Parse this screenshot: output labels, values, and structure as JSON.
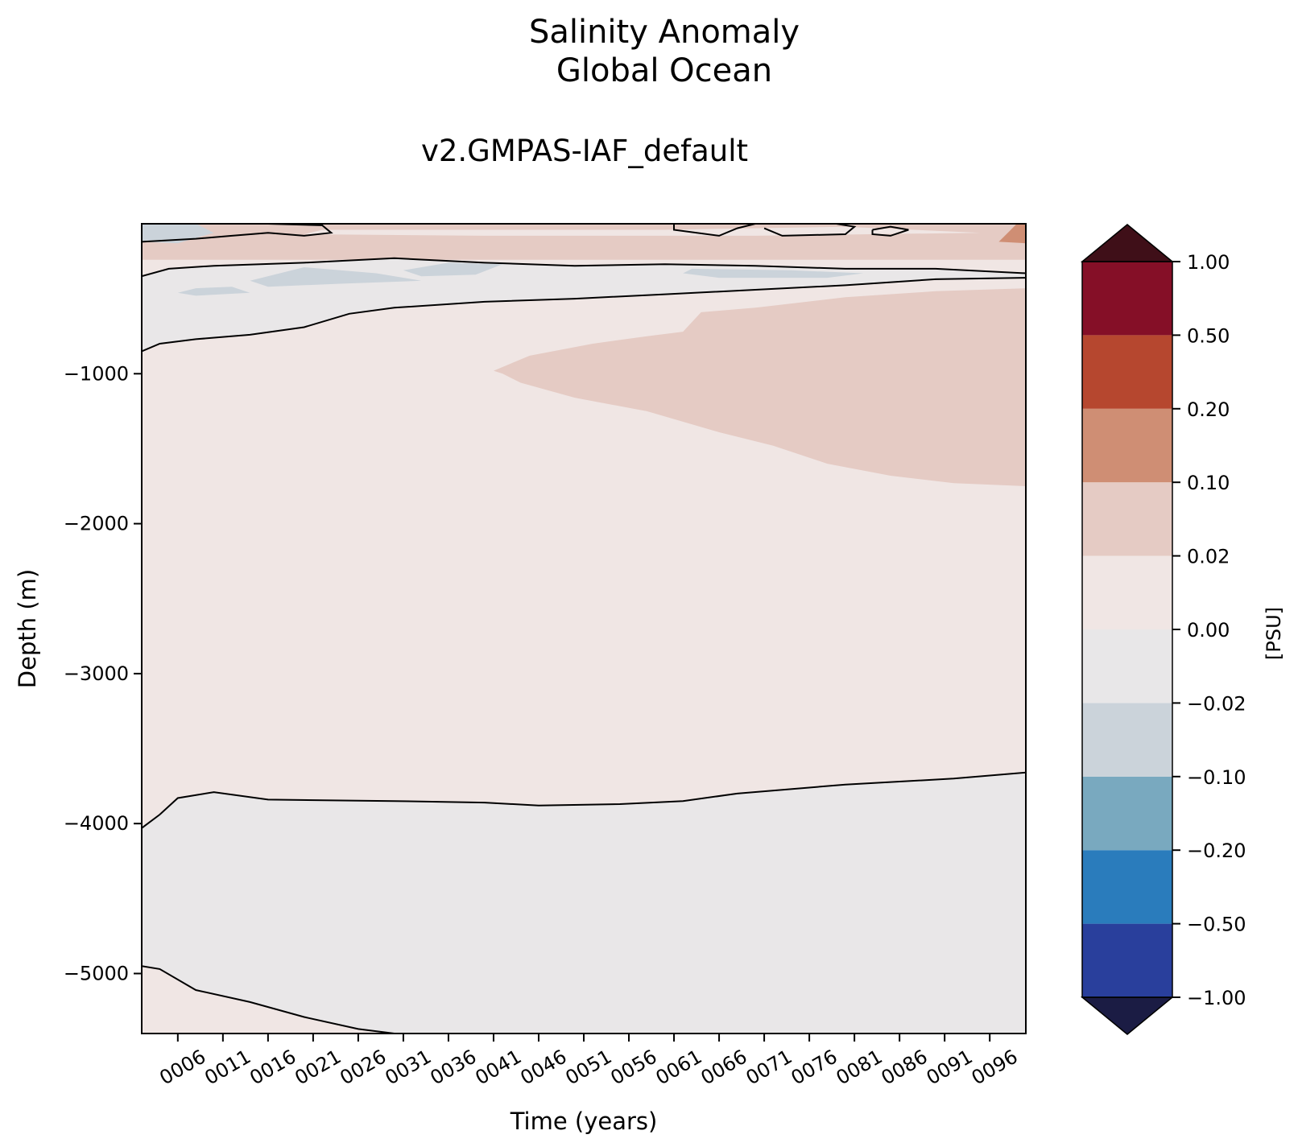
{
  "chart_data": {
    "type": "heatmap",
    "title": "Salinity Anomaly",
    "title_line2": "Global Ocean",
    "subtitle": "v2.GMPAS-IAF_default",
    "xlabel": "Time (years)",
    "ylabel": "Depth (m)",
    "colorbar_label": "[PSU]",
    "xlim": [
      2,
      100
    ],
    "ylim": [
      -5400,
      0
    ],
    "x_ticks": [
      {
        "value": 6,
        "label": "0006"
      },
      {
        "value": 11,
        "label": "0011"
      },
      {
        "value": 16,
        "label": "0016"
      },
      {
        "value": 21,
        "label": "0021"
      },
      {
        "value": 26,
        "label": "0026"
      },
      {
        "value": 31,
        "label": "0031"
      },
      {
        "value": 36,
        "label": "0036"
      },
      {
        "value": 41,
        "label": "0041"
      },
      {
        "value": 46,
        "label": "0046"
      },
      {
        "value": 51,
        "label": "0051"
      },
      {
        "value": 56,
        "label": "0056"
      },
      {
        "value": 61,
        "label": "0061"
      },
      {
        "value": 66,
        "label": "0066"
      },
      {
        "value": 71,
        "label": "0071"
      },
      {
        "value": 76,
        "label": "0076"
      },
      {
        "value": 81,
        "label": "0081"
      },
      {
        "value": 86,
        "label": "0086"
      },
      {
        "value": 91,
        "label": "0091"
      },
      {
        "value": 96,
        "label": "0096"
      }
    ],
    "y_ticks": [
      {
        "value": -1000,
        "label": "−1000"
      },
      {
        "value": -2000,
        "label": "−2000"
      },
      {
        "value": -3000,
        "label": "−3000"
      },
      {
        "value": -4000,
        "label": "−4000"
      },
      {
        "value": -5000,
        "label": "−5000"
      }
    ],
    "colorbar": {
      "levels": [
        "−1.00",
        "−0.50",
        "−0.20",
        "−0.10",
        "−0.02",
        "0.00",
        "0.02",
        "0.10",
        "0.20",
        "0.50",
        "1.00"
      ],
      "colors": [
        "#293f9c",
        "#2a7cbc",
        "#79a9bf",
        "#cbd3da",
        "#e8e7e8",
        "#f0e6e4",
        "#e5cbc4",
        "#cf8e74",
        "#b6472f",
        "#850f27"
      ],
      "under_color": "#1b1c44",
      "over_color": "#3f0f18"
    },
    "fill_colors": {
      "neutral_neg": "#e9e7e8",
      "neutral_pos": "#f0e6e4",
      "light_pos": "#e5cbc4",
      "light_neg": "#cbd3da",
      "medium_pos": "#cf8e74"
    },
    "regions": {
      "upper_negative_band": {
        "x": [
          2,
          100
        ],
        "top": [
          -350,
          -320,
          -280,
          -260,
          -230,
          -250,
          -260,
          -270,
          -280,
          -300,
          -320,
          -330
        ],
        "bottom": [
          -850,
          -760,
          -690,
          -610,
          -560,
          -520,
          -500,
          -470,
          -440,
          -410,
          -370,
          -360
        ]
      },
      "surface_positive_band": {
        "x": [
          2,
          100
        ],
        "depth_range": [
          0,
          -230
        ]
      },
      "mid_positive_tongue": {
        "x_start": 41,
        "x_end": 100,
        "top": -430,
        "bottom_at_end": -1750
      },
      "deep_negative_layer": {
        "x": [
          2,
          100
        ],
        "top": [
          -4000,
          -3820,
          -3850,
          -3870,
          -3880,
          -3860,
          -3780,
          -3720,
          -3670
        ],
        "bottom": [
          -4950,
          -5150,
          -5300,
          -5400
        ]
      }
    },
    "contour_levels": [
      0.0
    ],
    "grid": false
  }
}
